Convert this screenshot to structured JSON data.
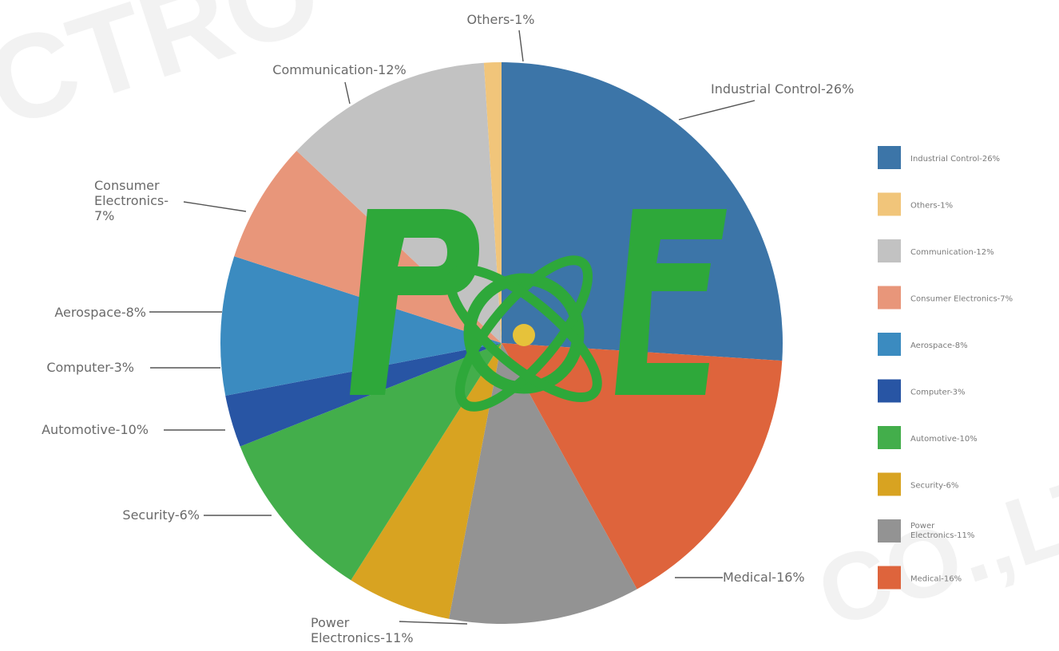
{
  "watermark": {
    "top": "CTRO",
    "bottom": "CO.,LT"
  },
  "logo": {
    "text": "POE"
  },
  "chart_data": {
    "type": "pie",
    "slices": [
      {
        "label": "Industrial Control-26%",
        "value": 26,
        "color": "#3c75a8",
        "callout_lines": [
          "Industrial Control-26%"
        ],
        "legend_lines": [
          "Industrial Control-26%"
        ]
      },
      {
        "label": "Medical-16%",
        "value": 16,
        "color": "#de643c",
        "callout_lines": [
          "Medical-16%"
        ],
        "legend_lines": [
          "Medical-16%"
        ]
      },
      {
        "label": "Power Electronics-11%",
        "value": 11,
        "color": "#939393",
        "callout_lines": [
          "Power",
          "Electronics-11%"
        ],
        "legend_lines": [
          "Power",
          "Electronics-11%"
        ]
      },
      {
        "label": "Security-6%",
        "value": 6,
        "color": "#d8a321",
        "callout_lines": [
          "Security-6%"
        ],
        "legend_lines": [
          "Security-6%"
        ]
      },
      {
        "label": "Automotive-10%",
        "value": 10,
        "color": "#43ae4b",
        "callout_lines": [
          "Automotive-10%"
        ],
        "legend_lines": [
          "Automotive-10%"
        ]
      },
      {
        "label": "Computer-3%",
        "value": 3,
        "color": "#2855a4",
        "callout_lines": [
          "Computer-3%"
        ],
        "legend_lines": [
          "Computer-3%"
        ]
      },
      {
        "label": "Aerospace-8%",
        "value": 8,
        "color": "#3b8bc0",
        "callout_lines": [
          "Aerospace-8%"
        ],
        "legend_lines": [
          "Aerospace-8%"
        ]
      },
      {
        "label": "Consumer Electronics-7%",
        "value": 7,
        "color": "#e8967a",
        "callout_lines": [
          "Consumer",
          "Electronics-",
          "7%"
        ],
        "legend_lines": [
          "Consumer Electronics-7%"
        ]
      },
      {
        "label": "Communication-12%",
        "value": 12,
        "color": "#c2c2c2",
        "callout_lines": [
          "Communication-12%"
        ],
        "legend_lines": [
          "Communication-12%"
        ]
      },
      {
        "label": "Others-1%",
        "value": 1,
        "color": "#f1c57a",
        "callout_lines": [
          "Others-1%"
        ],
        "legend_lines": [
          "Others-1%"
        ]
      }
    ],
    "legend_order": [
      "Industrial Control-26%",
      "Others-1%",
      "Communication-12%",
      "Consumer Electronics-7%",
      "Aerospace-8%",
      "Computer-3%",
      "Automotive-10%",
      "Security-6%",
      "Power Electronics-11%",
      "Medical-16%"
    ],
    "legend_position": "right"
  }
}
